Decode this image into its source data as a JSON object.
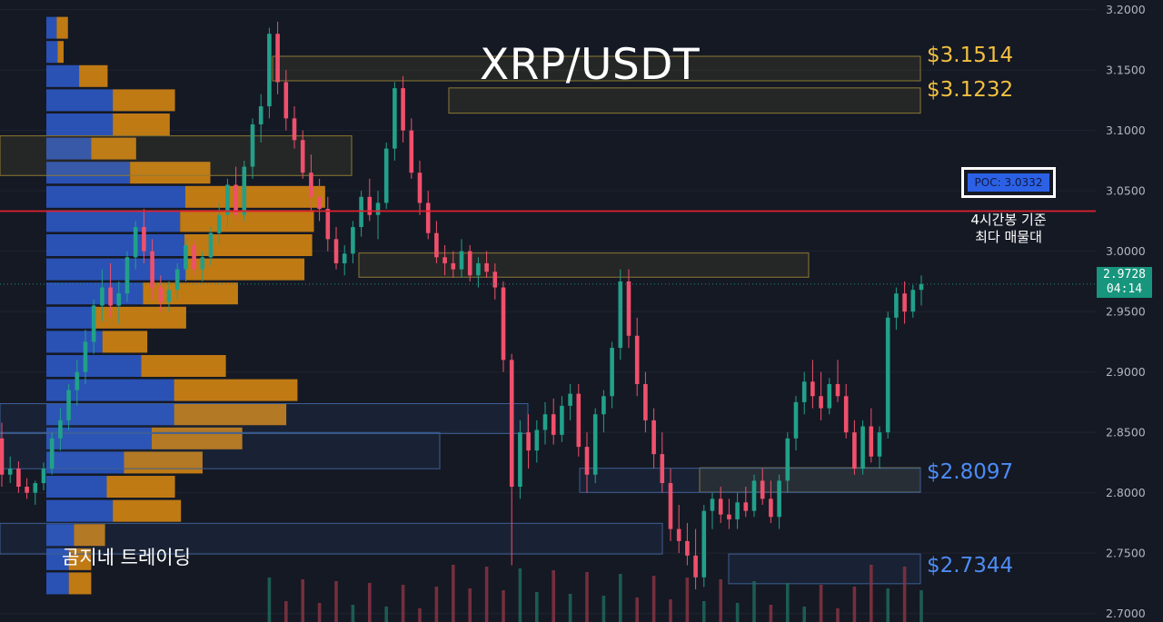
{
  "title": "XRP/USDT",
  "watermark": "곰지네 트레이딩",
  "levels": {
    "gold_top": "$3.1514",
    "gold_second": "$3.1232",
    "blue_upper": "$2.8097",
    "blue_lower": "$2.7344"
  },
  "poc": {
    "label": "POC: 3.0332",
    "annotation_line1": "4시간봉 기준",
    "annotation_line2": "최다 매물대"
  },
  "last_price": {
    "value": "2.9728",
    "countdown": "04:14"
  },
  "colors": {
    "background": "#151924",
    "up_candle": "#22a08a",
    "down_candle": "#f0506c",
    "profile_blue": "#2f5fd6",
    "profile_orange": "#de8c12",
    "poc_line": "#e0202e",
    "gold_text": "#f1c040",
    "blue_text": "#4d8cf5",
    "axis_text": "#b2b5be"
  },
  "chart_data": {
    "type": "candlestick",
    "symbol": "XRP/USDT",
    "y_axis": {
      "ticks": [
        "2.7000",
        "2.7500",
        "2.8000",
        "2.8500",
        "2.9000",
        "2.9500",
        "3.0000",
        "3.0500",
        "3.1000",
        "3.1500",
        "3.2000"
      ],
      "ylim": [
        2.693,
        3.208
      ]
    },
    "horizontal_lines": [
      {
        "name": "POC",
        "value": 3.0332
      }
    ],
    "zones": [
      {
        "low": 3.1411,
        "high": 3.1614,
        "color": "gold"
      },
      {
        "low": 3.1143,
        "high": 3.1352,
        "color": "gold"
      },
      {
        "low": 3.0627,
        "high": 3.0955,
        "color": "gold"
      },
      {
        "low": 2.9785,
        "high": 2.9985,
        "color": "gold"
      },
      {
        "low": 2.8005,
        "high": 2.8207,
        "color": "gold"
      },
      {
        "low": 2.8491,
        "high": 2.8738,
        "color": "blue"
      },
      {
        "low": 2.8199,
        "high": 2.8499,
        "color": "blue"
      },
      {
        "low": 2.8003,
        "high": 2.8203,
        "color": "blue"
      },
      {
        "low": 2.7493,
        "high": 2.7747,
        "color": "blue"
      },
      {
        "low": 2.7247,
        "high": 2.7493,
        "color": "blue"
      }
    ],
    "volume_profile": [
      {
        "price": 3.185,
        "buy": 12,
        "sell": 13
      },
      {
        "price": 3.165,
        "buy": 13,
        "sell": 7
      },
      {
        "price": 3.145,
        "buy": 38,
        "sell": 33
      },
      {
        "price": 3.125,
        "buy": 77,
        "sell": 72
      },
      {
        "price": 3.105,
        "buy": 77,
        "sell": 66
      },
      {
        "price": 3.085,
        "buy": 52,
        "sell": 52
      },
      {
        "price": 3.065,
        "buy": 97,
        "sell": 93
      },
      {
        "price": 3.045,
        "buy": 161,
        "sell": 162
      },
      {
        "price": 3.025,
        "buy": 155,
        "sell": 155
      },
      {
        "price": 3.005,
        "buy": 160,
        "sell": 148
      },
      {
        "price": 2.985,
        "buy": 162,
        "sell": 137
      },
      {
        "price": 2.965,
        "buy": 112,
        "sell": 110
      },
      {
        "price": 2.945,
        "buy": 57,
        "sell": 105
      },
      {
        "price": 2.925,
        "buy": 65,
        "sell": 52
      },
      {
        "price": 2.905,
        "buy": 110,
        "sell": 98
      },
      {
        "price": 2.885,
        "buy": 148,
        "sell": 143
      },
      {
        "price": 2.865,
        "buy": 148,
        "sell": 130
      },
      {
        "price": 2.845,
        "buy": 122,
        "sell": 105
      },
      {
        "price": 2.825,
        "buy": 90,
        "sell": 91
      },
      {
        "price": 2.805,
        "buy": 70,
        "sell": 79
      },
      {
        "price": 2.785,
        "buy": 77,
        "sell": 79
      },
      {
        "price": 2.765,
        "buy": 32,
        "sell": 36
      },
      {
        "price": 2.745,
        "buy": 26,
        "sell": 26
      },
      {
        "price": 2.725,
        "buy": 26,
        "sell": 26
      }
    ],
    "candles_ohlc": [
      [
        2.845,
        2.858,
        2.805,
        2.815
      ],
      [
        2.815,
        2.83,
        2.808,
        2.82
      ],
      [
        2.82,
        2.826,
        2.8,
        2.805
      ],
      [
        2.805,
        2.812,
        2.795,
        2.8
      ],
      [
        2.8,
        2.81,
        2.79,
        2.808
      ],
      [
        2.808,
        2.825,
        2.802,
        2.82
      ],
      [
        2.82,
        2.85,
        2.815,
        2.845
      ],
      [
        2.845,
        2.87,
        2.835,
        2.86
      ],
      [
        2.86,
        2.89,
        2.852,
        2.885
      ],
      [
        2.885,
        2.91,
        2.872,
        2.9
      ],
      [
        2.9,
        2.935,
        2.89,
        2.925
      ],
      [
        2.925,
        2.96,
        2.915,
        2.955
      ],
      [
        2.955,
        2.985,
        2.942,
        2.97
      ],
      [
        2.97,
        2.99,
        2.945,
        2.955
      ],
      [
        2.955,
        2.975,
        2.94,
        2.965
      ],
      [
        2.965,
        3.0,
        2.958,
        2.995
      ],
      [
        2.995,
        3.025,
        2.985,
        3.02
      ],
      [
        3.02,
        3.035,
        2.99,
        3.0
      ],
      [
        3.0,
        3.01,
        2.96,
        2.97
      ],
      [
        2.97,
        2.98,
        2.95,
        2.958
      ],
      [
        2.958,
        2.975,
        2.95,
        2.968
      ],
      [
        2.968,
        2.99,
        2.96,
        2.985
      ],
      [
        2.985,
        3.01,
        2.975,
        3.005
      ],
      [
        3.005,
        3.01,
        2.98,
        2.985
      ],
      [
        2.985,
        3.0,
        2.975,
        2.995
      ],
      [
        2.995,
        3.02,
        2.988,
        3.015
      ],
      [
        3.015,
        3.04,
        3.005,
        3.03
      ],
      [
        3.03,
        3.06,
        3.02,
        3.055
      ],
      [
        3.055,
        3.07,
        3.025,
        3.03
      ],
      [
        3.03,
        3.075,
        3.025,
        3.07
      ],
      [
        3.07,
        3.11,
        3.06,
        3.105
      ],
      [
        3.105,
        3.13,
        3.09,
        3.12
      ],
      [
        3.12,
        3.185,
        3.11,
        3.18
      ],
      [
        3.18,
        3.19,
        3.13,
        3.14
      ],
      [
        3.14,
        3.15,
        3.1,
        3.11
      ],
      [
        3.11,
        3.12,
        3.085,
        3.092
      ],
      [
        3.092,
        3.1,
        3.06,
        3.065
      ],
      [
        3.065,
        3.08,
        3.03,
        3.045
      ],
      [
        3.045,
        3.06,
        3.025,
        3.035
      ],
      [
        3.035,
        3.045,
        3.0,
        3.01
      ],
      [
        3.01,
        3.02,
        2.985,
        2.99
      ],
      [
        2.99,
        3.005,
        2.98,
        2.998
      ],
      [
        2.998,
        3.025,
        2.99,
        3.02
      ],
      [
        3.02,
        3.05,
        3.012,
        3.045
      ],
      [
        3.045,
        3.06,
        3.025,
        3.03
      ],
      [
        3.03,
        3.05,
        3.01,
        3.04
      ],
      [
        3.04,
        3.09,
        3.035,
        3.085
      ],
      [
        3.085,
        3.14,
        3.075,
        3.135
      ],
      [
        3.135,
        3.145,
        3.09,
        3.1
      ],
      [
        3.1,
        3.11,
        3.06,
        3.065
      ],
      [
        3.065,
        3.075,
        3.03,
        3.04
      ],
      [
        3.04,
        3.05,
        3.01,
        3.015
      ],
      [
        3.015,
        3.025,
        2.99,
        2.995
      ],
      [
        2.995,
        3.005,
        2.98,
        2.99
      ],
      [
        2.99,
        3.0,
        2.978,
        2.985
      ],
      [
        2.985,
        3.01,
        2.978,
        3.0
      ],
      [
        3.0,
        3.005,
        2.975,
        2.98
      ],
      [
        2.98,
        2.995,
        2.97,
        2.99
      ],
      [
        2.99,
        3.0,
        2.978,
        2.983
      ],
      [
        2.983,
        2.99,
        2.96,
        2.97
      ],
      [
        2.97,
        2.975,
        2.9,
        2.91
      ],
      [
        2.91,
        2.915,
        2.74,
        2.805
      ],
      [
        2.805,
        2.86,
        2.795,
        2.85
      ],
      [
        2.85,
        2.865,
        2.82,
        2.835
      ],
      [
        2.835,
        2.86,
        2.825,
        2.852
      ],
      [
        2.852,
        2.875,
        2.84,
        2.865
      ],
      [
        2.865,
        2.878,
        2.84,
        2.848
      ],
      [
        2.848,
        2.88,
        2.842,
        2.872
      ],
      [
        2.872,
        2.89,
        2.86,
        2.882
      ],
      [
        2.882,
        2.89,
        2.83,
        2.838
      ],
      [
        2.838,
        2.85,
        2.8,
        2.815
      ],
      [
        2.815,
        2.87,
        2.808,
        2.865
      ],
      [
        2.865,
        2.885,
        2.85,
        2.88
      ],
      [
        2.88,
        2.925,
        2.87,
        2.92
      ],
      [
        2.92,
        2.985,
        2.91,
        2.975
      ],
      [
        2.975,
        2.985,
        2.92,
        2.93
      ],
      [
        2.93,
        2.945,
        2.88,
        2.89
      ],
      [
        2.89,
        2.9,
        2.85,
        2.86
      ],
      [
        2.86,
        2.87,
        2.82,
        2.832
      ],
      [
        2.832,
        2.85,
        2.8,
        2.808
      ],
      [
        2.808,
        2.82,
        2.76,
        2.77
      ],
      [
        2.77,
        2.79,
        2.75,
        2.76
      ],
      [
        2.76,
        2.775,
        2.74,
        2.748
      ],
      [
        2.748,
        2.77,
        2.72,
        2.73
      ],
      [
        2.73,
        2.79,
        2.722,
        2.785
      ],
      [
        2.785,
        2.8,
        2.77,
        2.795
      ],
      [
        2.795,
        2.805,
        2.775,
        2.782
      ],
      [
        2.782,
        2.795,
        2.77,
        2.778
      ],
      [
        2.778,
        2.8,
        2.77,
        2.792
      ],
      [
        2.792,
        2.805,
        2.78,
        2.785
      ],
      [
        2.785,
        2.815,
        2.78,
        2.81
      ],
      [
        2.81,
        2.82,
        2.79,
        2.795
      ],
      [
        2.795,
        2.81,
        2.775,
        2.78
      ],
      [
        2.78,
        2.815,
        2.77,
        2.81
      ],
      [
        2.81,
        2.85,
        2.8,
        2.845
      ],
      [
        2.845,
        2.88,
        2.835,
        2.875
      ],
      [
        2.875,
        2.9,
        2.865,
        2.892
      ],
      [
        2.892,
        2.91,
        2.87,
        2.88
      ],
      [
        2.88,
        2.9,
        2.86,
        2.87
      ],
      [
        2.87,
        2.895,
        2.865,
        2.89
      ],
      [
        2.89,
        2.91,
        2.875,
        2.88
      ],
      [
        2.88,
        2.89,
        2.845,
        2.85
      ],
      [
        2.85,
        2.86,
        2.815,
        2.82
      ],
      [
        2.82,
        2.86,
        2.815,
        2.855
      ],
      [
        2.855,
        2.87,
        2.825,
        2.83
      ],
      [
        2.83,
        2.855,
        2.82,
        2.85
      ],
      [
        2.85,
        2.95,
        2.845,
        2.945
      ],
      [
        2.945,
        2.97,
        2.935,
        2.965
      ],
      [
        2.965,
        2.975,
        2.94,
        2.95
      ],
      [
        2.95,
        2.972,
        2.945,
        2.968
      ],
      [
        2.968,
        2.98,
        2.955,
        2.9728
      ]
    ]
  }
}
